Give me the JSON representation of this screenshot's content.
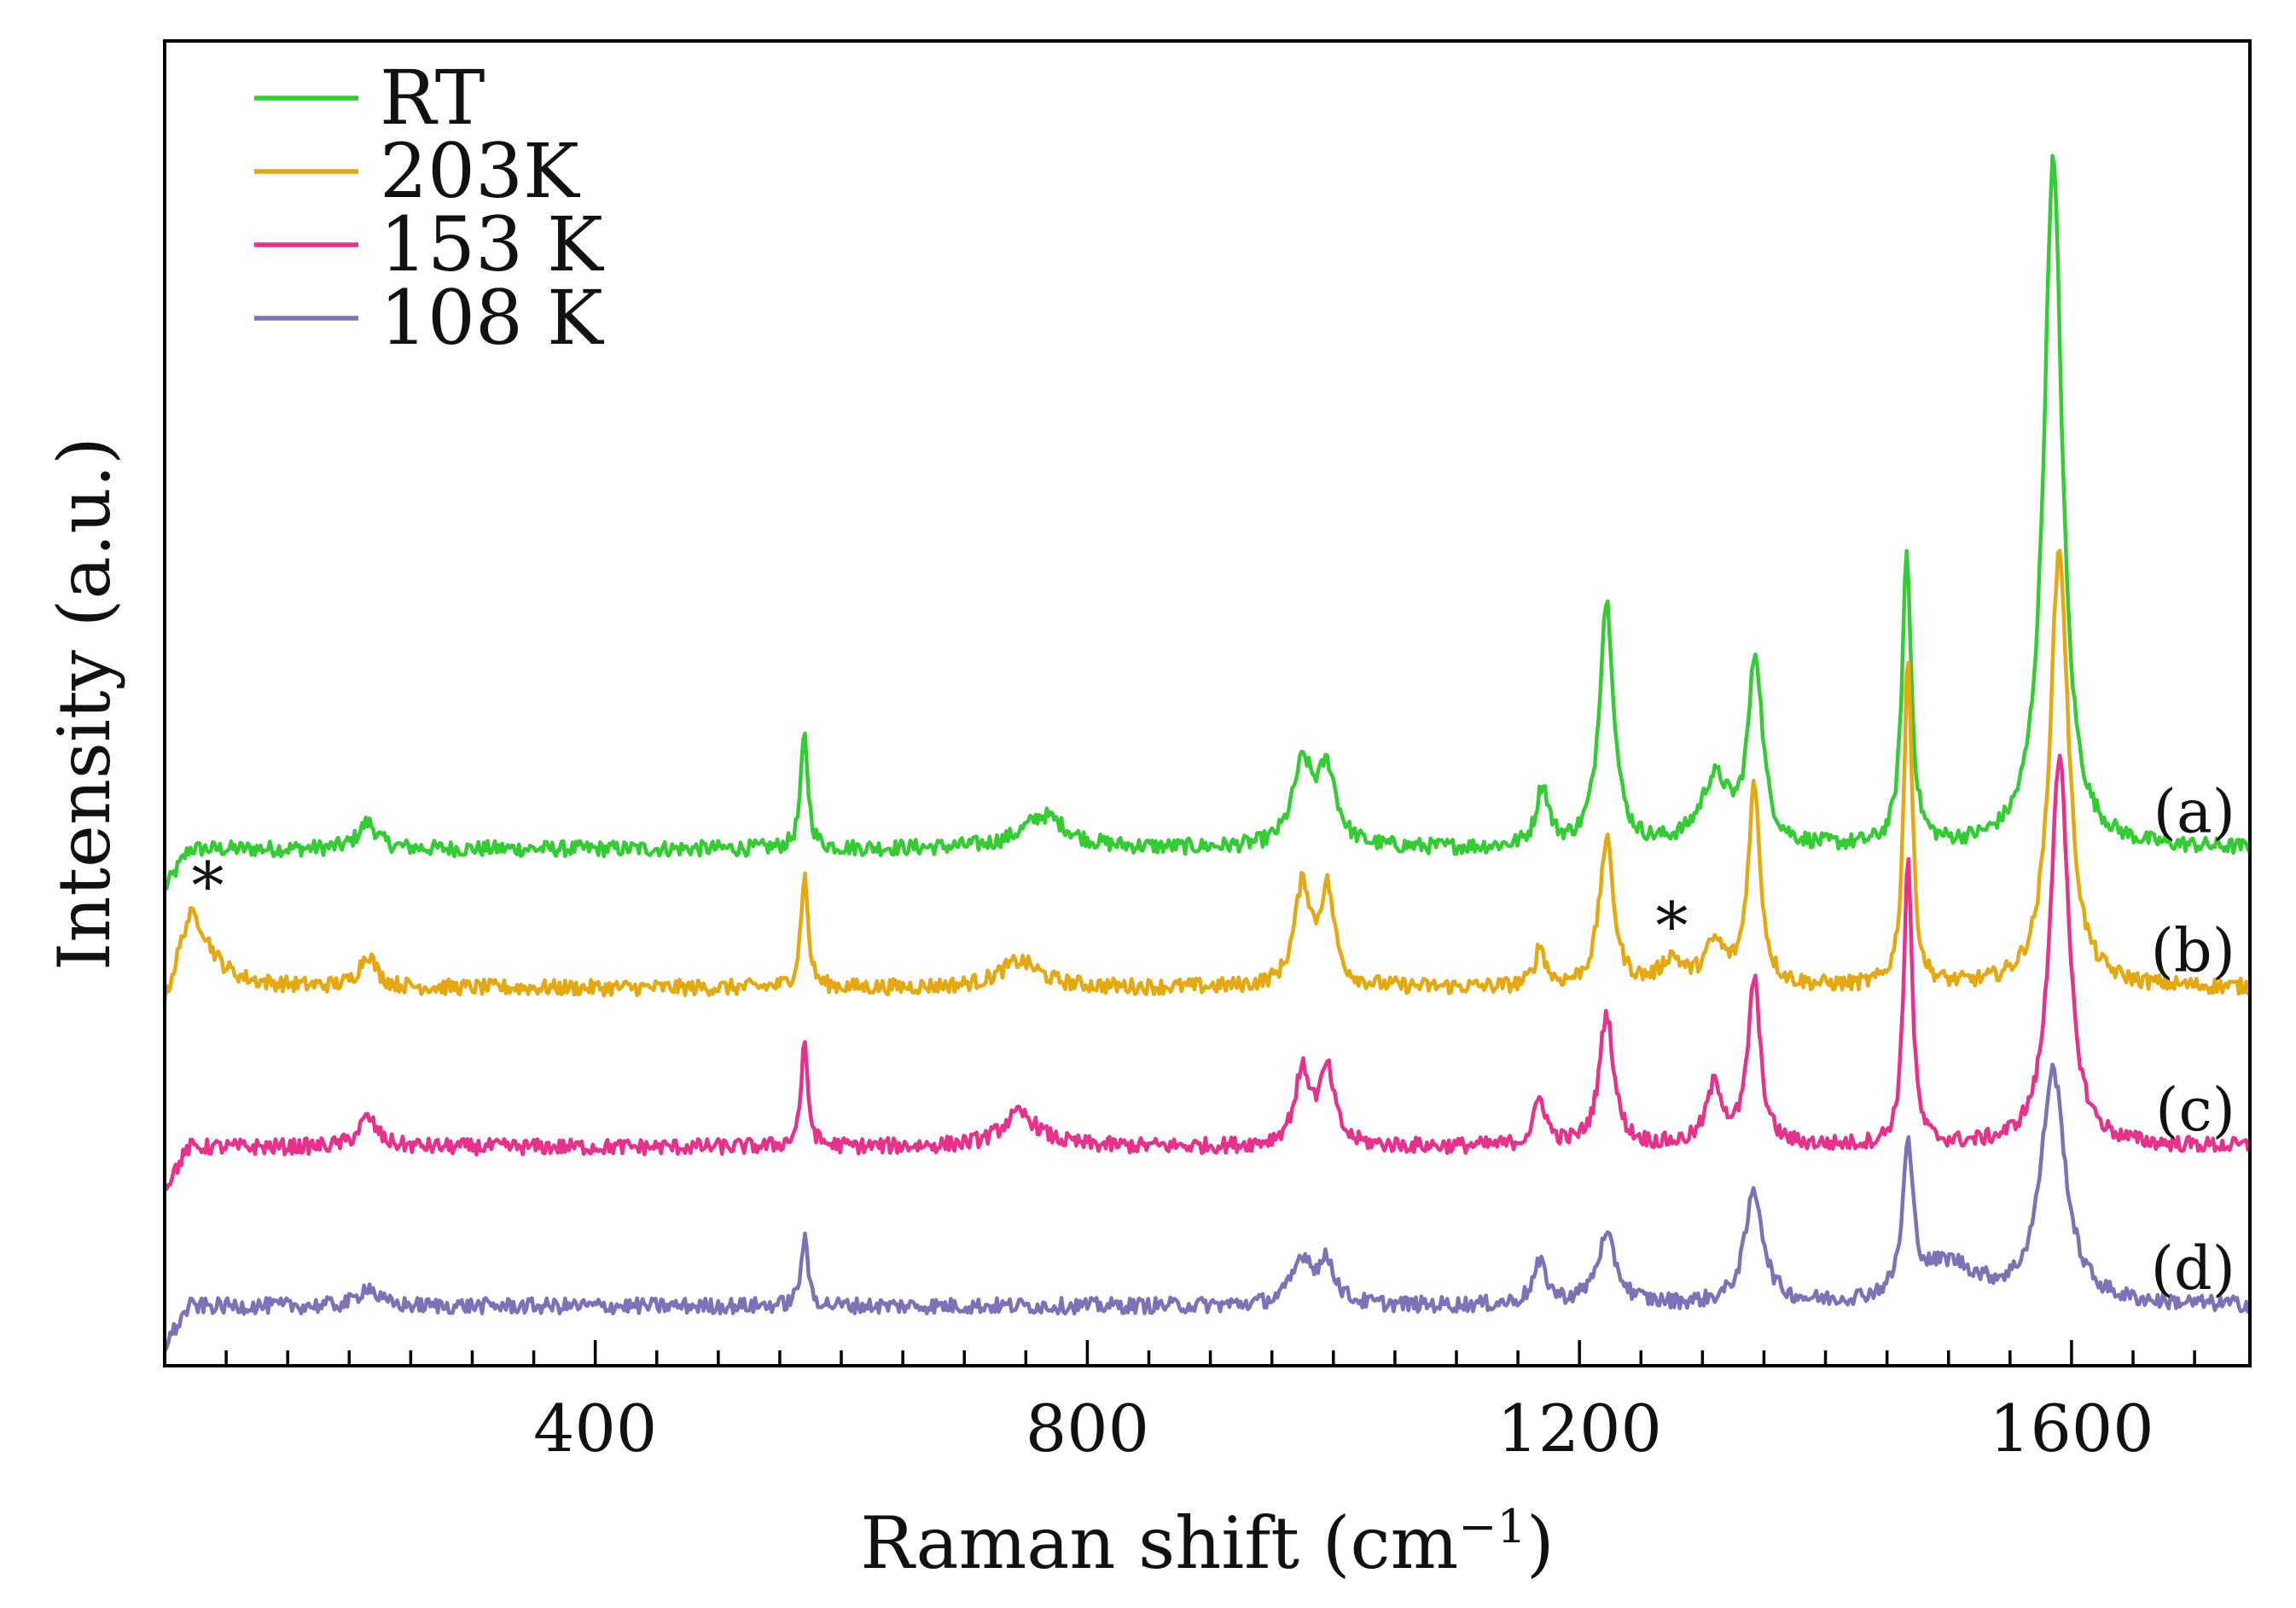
{
  "chart_data": {
    "type": "line",
    "title": "",
    "xlabel": "Raman shift (cm",
    "xlabel_sup": "−1",
    "xlabel_close": ")",
    "ylabel": "Intensity (a.u.)",
    "xlim": [
      50,
      1745
    ],
    "ylim": [
      0,
      1
    ],
    "x_ticks": [
      400,
      800,
      1200,
      1600
    ],
    "x_tick_labels": [
      "400",
      "800",
      "1200",
      "1600"
    ],
    "x_minor_step": 50,
    "y_ticks": [],
    "grid": false,
    "legend_position": "top-left",
    "series": [
      {
        "name": "RT",
        "label": "(a)",
        "color": "#33cc33",
        "baseline": 0.39,
        "peaks": [
          {
            "x": 215,
            "h": 0.02,
            "w": 9
          },
          {
            "x": 570,
            "h": 0.085,
            "w": 3.5
          },
          {
            "x": 765,
            "h": 0.025,
            "w": 22
          },
          {
            "x": 975,
            "h": 0.06,
            "w": 10
          },
          {
            "x": 995,
            "h": 0.055,
            "w": 9
          },
          {
            "x": 1170,
            "h": 0.045,
            "w": 6
          },
          {
            "x": 1222,
            "h": 0.185,
            "w": 7
          },
          {
            "x": 1310,
            "h": 0.05,
            "w": 14
          },
          {
            "x": 1343,
            "h": 0.14,
            "w": 7
          },
          {
            "x": 1466,
            "h": 0.22,
            "w": 4.5
          },
          {
            "x": 1585,
            "h": 0.52,
            "w": 9
          }
        ]
      },
      {
        "name": "203K",
        "label": "(b)",
        "color": "#e6a810",
        "baseline": 0.285,
        "peaks": [
          {
            "x": 72,
            "h": 0.055,
            "w": 18
          },
          {
            "x": 215,
            "h": 0.025,
            "w": 8
          },
          {
            "x": 570,
            "h": 0.085,
            "w": 3.5
          },
          {
            "x": 745,
            "h": 0.02,
            "w": 20
          },
          {
            "x": 975,
            "h": 0.075,
            "w": 8
          },
          {
            "x": 995,
            "h": 0.07,
            "w": 7
          },
          {
            "x": 1168,
            "h": 0.03,
            "w": 5
          },
          {
            "x": 1222,
            "h": 0.11,
            "w": 7
          },
          {
            "x": 1275,
            "h": 0.02,
            "w": 10
          },
          {
            "x": 1310,
            "h": 0.03,
            "w": 10
          },
          {
            "x": 1342,
            "h": 0.15,
            "w": 6
          },
          {
            "x": 1467,
            "h": 0.25,
            "w": 4
          },
          {
            "x": 1590,
            "h": 0.33,
            "w": 9
          }
        ]
      },
      {
        "name": "153 K",
        "label": "(c)",
        "color": "#e8318a",
        "baseline": 0.165,
        "peaks": [
          {
            "x": 215,
            "h": 0.022,
            "w": 9
          },
          {
            "x": 570,
            "h": 0.075,
            "w": 3.5
          },
          {
            "x": 745,
            "h": 0.025,
            "w": 18
          },
          {
            "x": 975,
            "h": 0.055,
            "w": 8
          },
          {
            "x": 995,
            "h": 0.055,
            "w": 7
          },
          {
            "x": 1168,
            "h": 0.035,
            "w": 6
          },
          {
            "x": 1222,
            "h": 0.1,
            "w": 7
          },
          {
            "x": 1310,
            "h": 0.045,
            "w": 8
          },
          {
            "x": 1342,
            "h": 0.125,
            "w": 6
          },
          {
            "x": 1467,
            "h": 0.22,
            "w": 4
          },
          {
            "x": 1590,
            "h": 0.295,
            "w": 9
          }
        ]
      },
      {
        "name": "108 K",
        "label": "(d)",
        "color": "#7b72b8",
        "baseline": 0.045,
        "peaks": [
          {
            "x": 215,
            "h": 0.015,
            "w": 8
          },
          {
            "x": 570,
            "h": 0.05,
            "w": 3.5
          },
          {
            "x": 975,
            "h": 0.035,
            "w": 10
          },
          {
            "x": 995,
            "h": 0.03,
            "w": 8
          },
          {
            "x": 1168,
            "h": 0.03,
            "w": 7
          },
          {
            "x": 1222,
            "h": 0.05,
            "w": 10
          },
          {
            "x": 1342,
            "h": 0.085,
            "w": 9
          },
          {
            "x": 1467,
            "h": 0.11,
            "w": 5
          },
          {
            "x": 1500,
            "h": 0.03,
            "w": 30
          },
          {
            "x": 1585,
            "h": 0.175,
            "w": 12
          }
        ]
      }
    ],
    "annotations": [
      {
        "text": "*",
        "x": 85,
        "y": 0.345
      },
      {
        "text": "*",
        "x": 1275,
        "y": 0.315
      }
    ]
  }
}
